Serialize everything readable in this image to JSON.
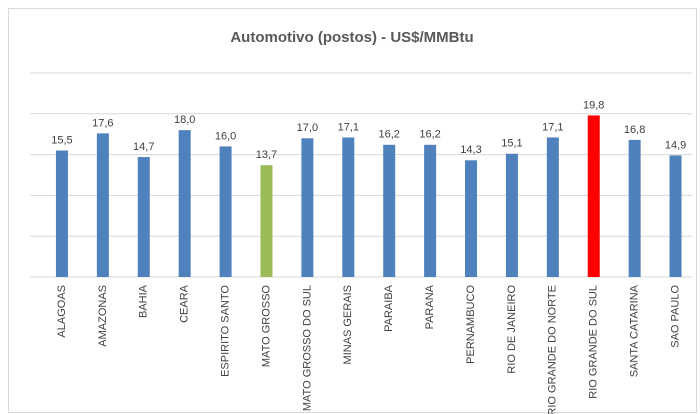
{
  "chart_data": {
    "type": "bar",
    "title": "Automotivo (postos) - US$/MMBtu",
    "categories": [
      "ALAGOAS",
      "AMAZONAS",
      "BAHIA",
      "CEARA",
      "ESPIRITO SANTO",
      "MATO GROSSO",
      "MATO GROSSO DO SUL",
      "MINAS GERAIS",
      "PARAIBA",
      "PARANA",
      "PERNAMBUCO",
      "RIO DE JANEIRO",
      "RIO GRANDE DO NORTE",
      "RIO GRANDE DO SUL",
      "SANTA CATARINA",
      "SAO PAULO"
    ],
    "values": [
      15.5,
      17.6,
      14.7,
      18.0,
      16.0,
      13.7,
      17.0,
      17.1,
      16.2,
      16.2,
      14.3,
      15.1,
      17.1,
      19.8,
      16.8,
      14.9
    ],
    "value_labels": [
      "15,5",
      "17,6",
      "14,7",
      "18,0",
      "16,0",
      "13,7",
      "17,0",
      "17,1",
      "16,2",
      "16,2",
      "14,3",
      "15,1",
      "17,1",
      "19,8",
      "16,8",
      "14,9"
    ],
    "colors": [
      "#4f81bd",
      "#4f81bd",
      "#4f81bd",
      "#4f81bd",
      "#4f81bd",
      "#9bbb59",
      "#4f81bd",
      "#4f81bd",
      "#4f81bd",
      "#4f81bd",
      "#4f81bd",
      "#4f81bd",
      "#4f81bd",
      "#ff0000",
      "#4f81bd",
      "#4f81bd"
    ],
    "ylim": [
      0,
      25
    ],
    "yticks": [
      0,
      5,
      10,
      15,
      20,
      25
    ],
    "grid": true
  }
}
